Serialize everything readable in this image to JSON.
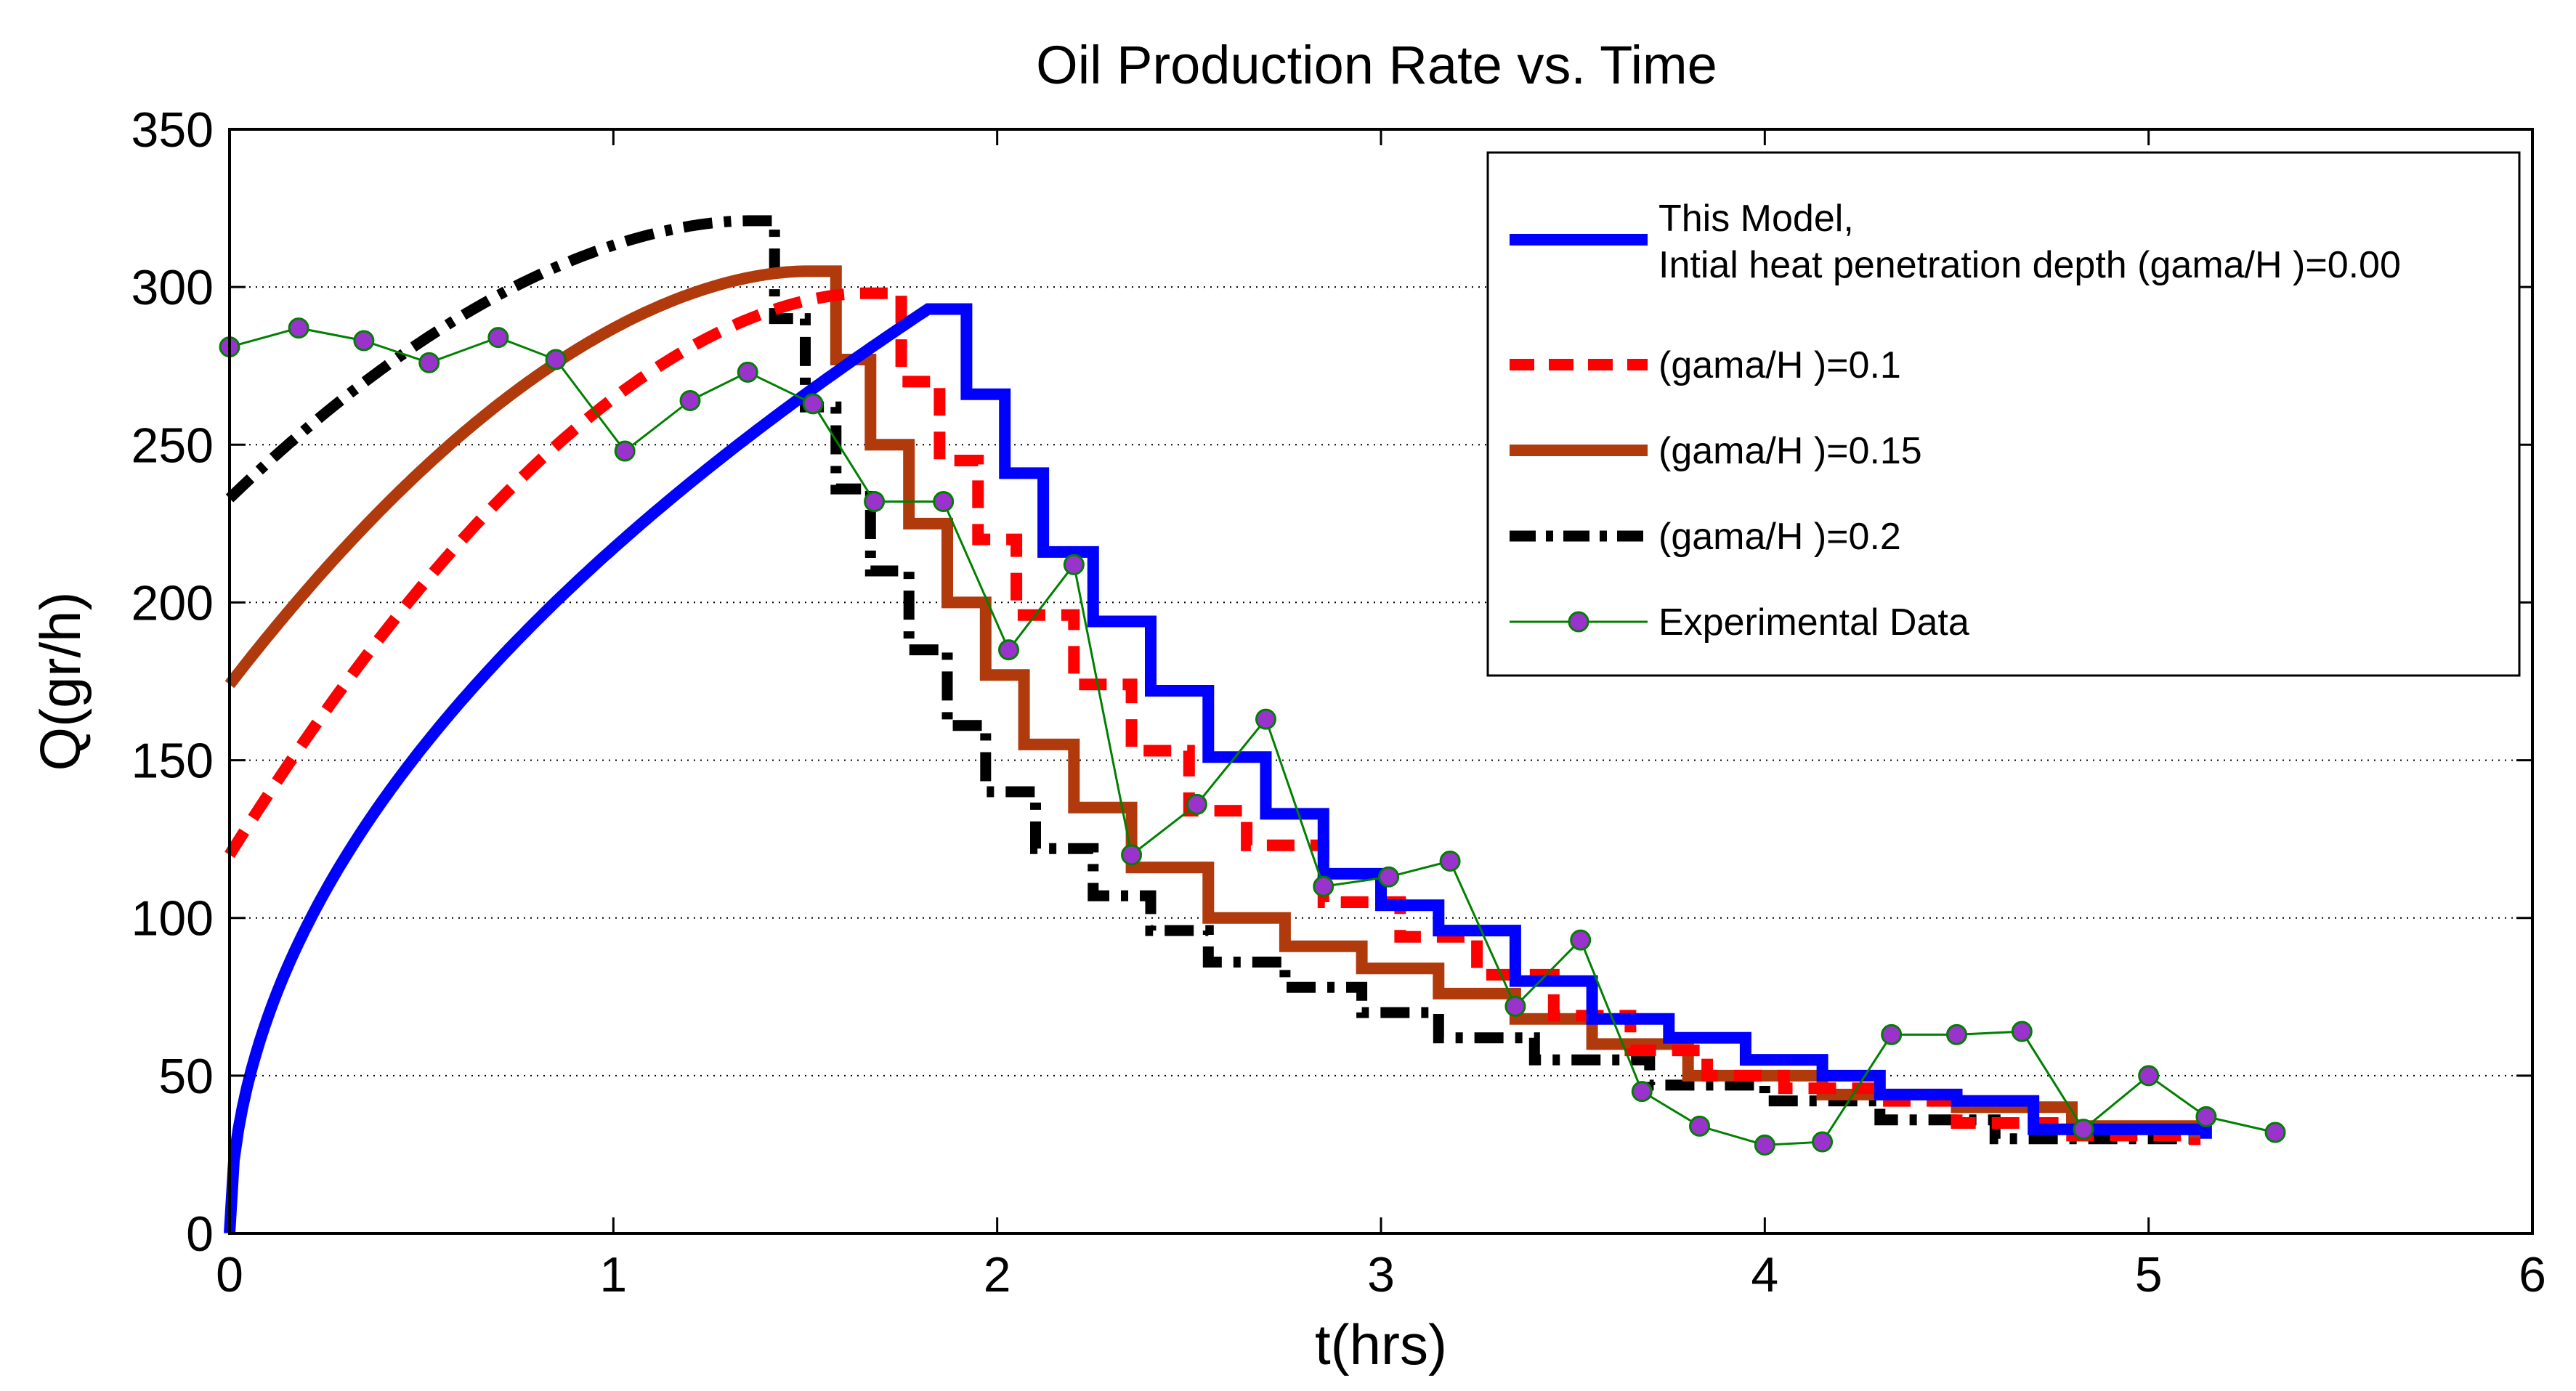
{
  "chart_data": {
    "type": "line",
    "title": "Oil Production Rate vs. Time",
    "xlabel": "t(hrs)",
    "ylabel": "Q(gr/h)",
    "xlim": [
      0,
      6
    ],
    "ylim": [
      0,
      350
    ],
    "xticks": [
      0,
      1,
      2,
      3,
      4,
      5,
      6
    ],
    "yticks": [
      0,
      50,
      100,
      150,
      200,
      250,
      300,
      350
    ],
    "grid": "horizontal-dotted",
    "legend_position": "top-right",
    "series": [
      {
        "name": "This Model,",
        "name_line2": "Intial heat penetration depth (gama/H )=0.00",
        "color": "#0000ff",
        "style": "solid-thick",
        "growth": {
          "t_start": 0,
          "t_end": 1.82,
          "q_start": 0,
          "q_end": 293,
          "shape": "sqrt"
        },
        "steps": {
          "t": [
            1.82,
            1.92,
            2.02,
            2.12,
            2.25,
            2.4,
            2.55,
            2.7,
            2.85,
            3.0,
            3.15,
            3.35,
            3.55,
            3.75,
            3.95,
            4.15,
            4.3,
            4.5,
            4.7,
            5.15
          ],
          "q": [
            293,
            266,
            241,
            216,
            194,
            172,
            151,
            133,
            114,
            104,
            96,
            80,
            68,
            62,
            55,
            50,
            44,
            42,
            33,
            30
          ]
        }
      },
      {
        "name": "(gama/H )=0.1",
        "color": "#ff0000",
        "style": "dashed-thick",
        "growth": {
          "t_start": 0,
          "t_end": 1.65,
          "q_start": 120,
          "q_end": 298,
          "shape": "concave"
        },
        "steps": {
          "t": [
            1.65,
            1.75,
            1.85,
            1.95,
            2.05,
            2.2,
            2.35,
            2.5,
            2.65,
            2.85,
            3.05,
            3.25,
            3.45,
            3.65,
            3.85,
            4.05,
            4.3,
            4.5,
            4.75,
            5.12
          ],
          "q": [
            298,
            270,
            245,
            220,
            196,
            174,
            153,
            134,
            123,
            105,
            94,
            82,
            69,
            58,
            50,
            46,
            42,
            35,
            31,
            28
          ]
        }
      },
      {
        "name": "(gama/H )=0.15",
        "color": "#b03a0c",
        "style": "solid-thick",
        "growth": {
          "t_start": 0,
          "t_end": 1.5,
          "q_start": 174,
          "q_end": 305,
          "shape": "concave"
        },
        "steps": {
          "t": [
            1.5,
            1.58,
            1.67,
            1.77,
            1.87,
            1.97,
            2.07,
            2.2,
            2.35,
            2.55,
            2.75,
            2.95,
            3.15,
            3.35,
            3.55,
            3.8,
            4.15,
            4.5,
            4.8,
            5.12
          ],
          "q": [
            305,
            277,
            250,
            225,
            200,
            177,
            155,
            135,
            116,
            100,
            91,
            84,
            76,
            68,
            60,
            50,
            44,
            40,
            34,
            30
          ]
        }
      },
      {
        "name": "(gama/H )=0.2",
        "color": "#000000",
        "style": "dashdot-thick",
        "growth": {
          "t_start": 0,
          "t_end": 1.35,
          "q_start": 233,
          "q_end": 321,
          "shape": "concave"
        },
        "steps": {
          "t": [
            1.35,
            1.42,
            1.5,
            1.58,
            1.67,
            1.77,
            1.87,
            1.97,
            2.1,
            2.25,
            2.4,
            2.55,
            2.75,
            2.95,
            3.15,
            3.4,
            3.7,
            4.0,
            4.3,
            4.6,
            5.12
          ],
          "q": [
            321,
            290,
            262,
            236,
            210,
            185,
            161,
            140,
            122,
            107,
            96,
            86,
            78,
            70,
            62,
            55,
            47,
            42,
            36,
            30,
            26
          ]
        }
      },
      {
        "name": "Experimental Data",
        "color": "#008000",
        "marker_color": "#9933cc",
        "style": "thin-with-markers",
        "x": [
          0.0,
          0.18,
          0.35,
          0.52,
          0.7,
          0.85,
          1.03,
          1.2,
          1.35,
          1.52,
          1.68,
          1.86,
          2.03,
          2.2,
          2.35,
          2.52,
          2.7,
          2.85,
          3.02,
          3.18,
          3.35,
          3.52,
          3.68,
          3.83,
          4.0,
          4.15,
          4.33,
          4.5,
          4.67,
          4.83,
          5.0,
          5.15,
          5.33
        ],
        "y": [
          281,
          287,
          283,
          276,
          284,
          277,
          248,
          264,
          273,
          263,
          232,
          232,
          185,
          212,
          120,
          136,
          163,
          110,
          113,
          118,
          72,
          93,
          45,
          34,
          28,
          29,
          63,
          63,
          64,
          33,
          50,
          37,
          32
        ]
      }
    ]
  }
}
